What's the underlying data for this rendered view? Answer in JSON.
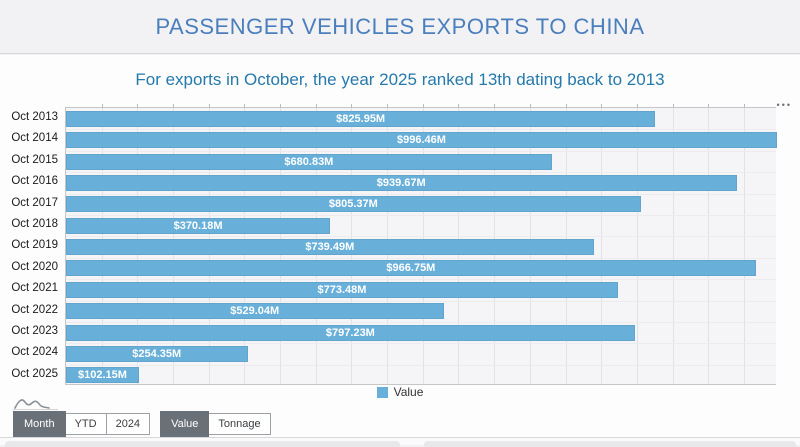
{
  "header": {
    "title": "PASSENGER VEHICLES EXPORTS TO CHINA"
  },
  "subtitle": "For exports in October, the year 2025 ranked 13th dating back to 2013",
  "chart_data": {
    "type": "bar",
    "orientation": "horizontal",
    "title": "PASSENGER VEHICLES EXPORTS TO CHINA",
    "subtitle": "For exports in October, the year 2025 ranked 13th dating back to 2013",
    "categories": [
      "Oct 2013",
      "Oct 2014",
      "Oct 2015",
      "Oct 2016",
      "Oct 2017",
      "Oct 2018",
      "Oct 2019",
      "Oct 2020",
      "Oct 2021",
      "Oct 2022",
      "Oct 2023",
      "Oct 2024",
      "Oct 2025"
    ],
    "series": [
      {
        "name": "Value",
        "values": [
          825.95,
          996.46,
          680.83,
          939.67,
          805.37,
          370.18,
          739.49,
          966.75,
          773.48,
          529.04,
          797.23,
          254.35,
          102.15
        ],
        "labels": [
          "$825.95M",
          "$996.46M",
          "$680.83M",
          "$939.67M",
          "$805.37M",
          "$370.18M",
          "$739.49M",
          "$966.75M",
          "$773.48M",
          "$529.04M",
          "$797.23M",
          "$254.35M",
          "$102.15M"
        ]
      }
    ],
    "x_axis": {
      "min": 0,
      "unit": "USD million",
      "gridline_step": 50,
      "tick_labels_visible": false
    },
    "grid": true,
    "legend": {
      "entries": [
        "Value"
      ],
      "position": "bottom-center"
    }
  },
  "legend": {
    "label": "Value"
  },
  "chart_menu": {
    "ellipsis_label": "•••"
  },
  "toolbar": {
    "period_options": [
      {
        "label": "Month",
        "selected": true
      },
      {
        "label": "YTD",
        "selected": false
      },
      {
        "label": "2024",
        "selected": false
      }
    ],
    "measure_options": [
      {
        "label": "Value",
        "selected": true
      },
      {
        "label": "Tonnage",
        "selected": false
      }
    ]
  },
  "colors": {
    "bar": "#68b0d9",
    "title": "#4a7ebc",
    "subtitle": "#2579ab",
    "selected_button_bg": "#6a7077",
    "value_label_text": "#ffffff"
  }
}
